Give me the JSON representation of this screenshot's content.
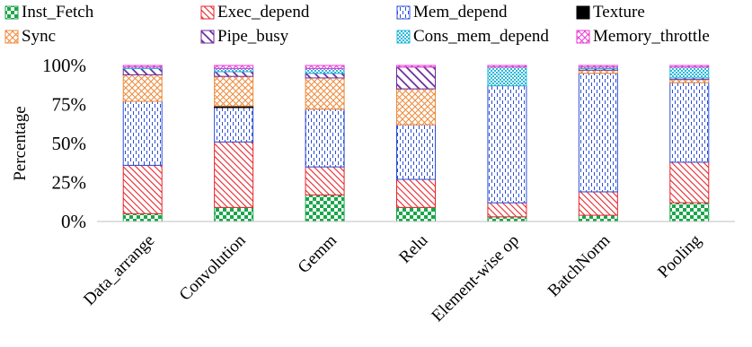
{
  "chart_data": {
    "type": "bar",
    "stacked": true,
    "title": "",
    "xlabel": "",
    "ylabel": "Percentage",
    "ylim": [
      0,
      100
    ],
    "yticks": [
      "0%",
      "25%",
      "50%",
      "75%",
      "100%"
    ],
    "grid": false,
    "legend_position": "top",
    "categories": [
      "Data_arrange",
      "Convolution",
      "Gemm",
      "Relu",
      "Element-wise op",
      "BatchNorm",
      "Pooling"
    ],
    "series": [
      {
        "name": "Inst_Fetch",
        "color": "#1aa64a",
        "pattern": "checker",
        "values": [
          5,
          9,
          17,
          9,
          3,
          4,
          12
        ]
      },
      {
        "name": "Exec_depend",
        "color": "#e8242b",
        "pattern": "diag",
        "values": [
          31,
          42,
          18,
          18,
          9,
          15,
          26
        ]
      },
      {
        "name": "Mem_depend",
        "color": "#2b4ed8",
        "pattern": "dashv",
        "values": [
          41,
          22,
          37,
          35,
          75,
          76,
          51
        ]
      },
      {
        "name": "Texture",
        "color": "#000000",
        "pattern": "solid",
        "values": [
          0,
          1,
          0,
          0,
          0,
          0,
          0
        ]
      },
      {
        "name": "Sync",
        "color": "#ee8a3a",
        "pattern": "cross",
        "values": [
          17,
          19,
          20,
          23,
          0,
          2,
          2
        ]
      },
      {
        "name": "Pipe_busy",
        "color": "#6a2b9e",
        "pattern": "thick",
        "values": [
          4,
          3,
          3,
          14,
          0,
          1,
          1
        ]
      },
      {
        "name": "Cons_mem_depend",
        "color": "#2ab8d8",
        "pattern": "dots",
        "values": [
          1,
          2,
          3,
          0,
          12,
          1,
          7
        ]
      },
      {
        "name": "Memory_throttle",
        "color": "#ea3ad4",
        "pattern": "cross",
        "values": [
          1,
          2,
          2,
          1,
          1,
          1,
          1
        ]
      }
    ]
  }
}
